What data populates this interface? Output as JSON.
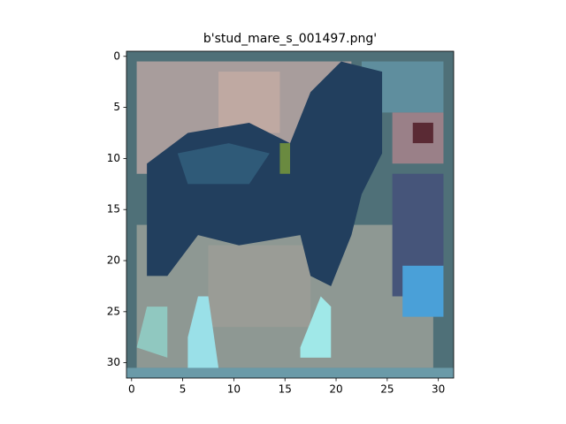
{
  "chart_data": {
    "type": "image",
    "title": "b'stud_mare_s_001497.png'",
    "xlim": [
      -0.5,
      31.5
    ],
    "ylim": [
      31.5,
      -0.5
    ],
    "xticks": [
      0,
      5,
      10,
      15,
      20,
      25,
      30
    ],
    "yticks": [
      0,
      5,
      10,
      15,
      20,
      25,
      30
    ]
  }
}
